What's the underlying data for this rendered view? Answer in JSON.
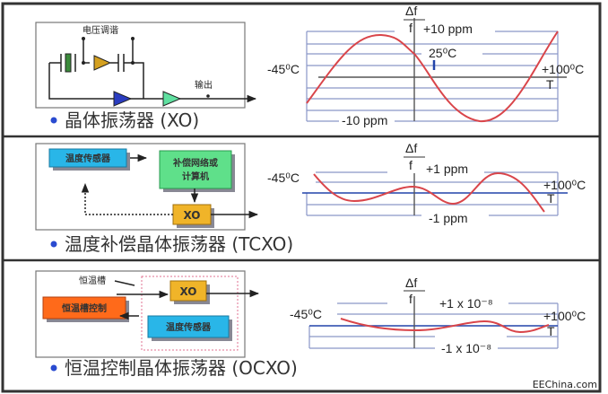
{
  "colors": {
    "curve": "#d9454a",
    "grid": "#8a96c8",
    "blue_line": "#2244aa",
    "sensor_box": "#29b6e8",
    "compute_box": "#5fe08a",
    "xo_box": "#f0b429",
    "oven_control_box": "#ff6a1a",
    "bullet": "#2a4bd0"
  },
  "xo": {
    "title": "晶体振荡器 (XO)",
    "circuit": {
      "voltage_tuning": "电压调谐",
      "output": "输出"
    },
    "graph": {
      "y_num": "Δf",
      "y_den": "f",
      "top": "+10 ppm",
      "bottom": "-10 ppm",
      "ref_temp": "25⁰C",
      "t_min": "-45⁰C",
      "t_max": "+100⁰C",
      "x_axis": "T"
    }
  },
  "tcxo": {
    "title": "温度补偿晶体振荡器 (TCXO)",
    "blocks": {
      "sensor": "温度传感器",
      "compute_line1": "补偿网络或",
      "compute_line2": "计算机",
      "xo": "XO"
    },
    "graph": {
      "y_num": "Δf",
      "y_den": "f",
      "top": "+1 ppm",
      "bottom": "-1 ppm",
      "t_min": "-45⁰C",
      "t_max": "+100⁰C",
      "x_axis": "T"
    }
  },
  "ocxo": {
    "title": "恒温控制晶体振荡器 (OCXO)",
    "blocks": {
      "oven": "恒温槽",
      "oven_control": "恒温槽控制",
      "xo": "XO",
      "sensor": "温度传感器"
    },
    "graph": {
      "y_num": "Δf",
      "y_den": "f",
      "top": "+1 x 10⁻⁸",
      "bottom": "-1 x 10⁻⁸",
      "t_min": "-45⁰C",
      "t_max": "+100⁰C",
      "x_axis": "T"
    }
  },
  "watermark": "EEChina.com"
}
